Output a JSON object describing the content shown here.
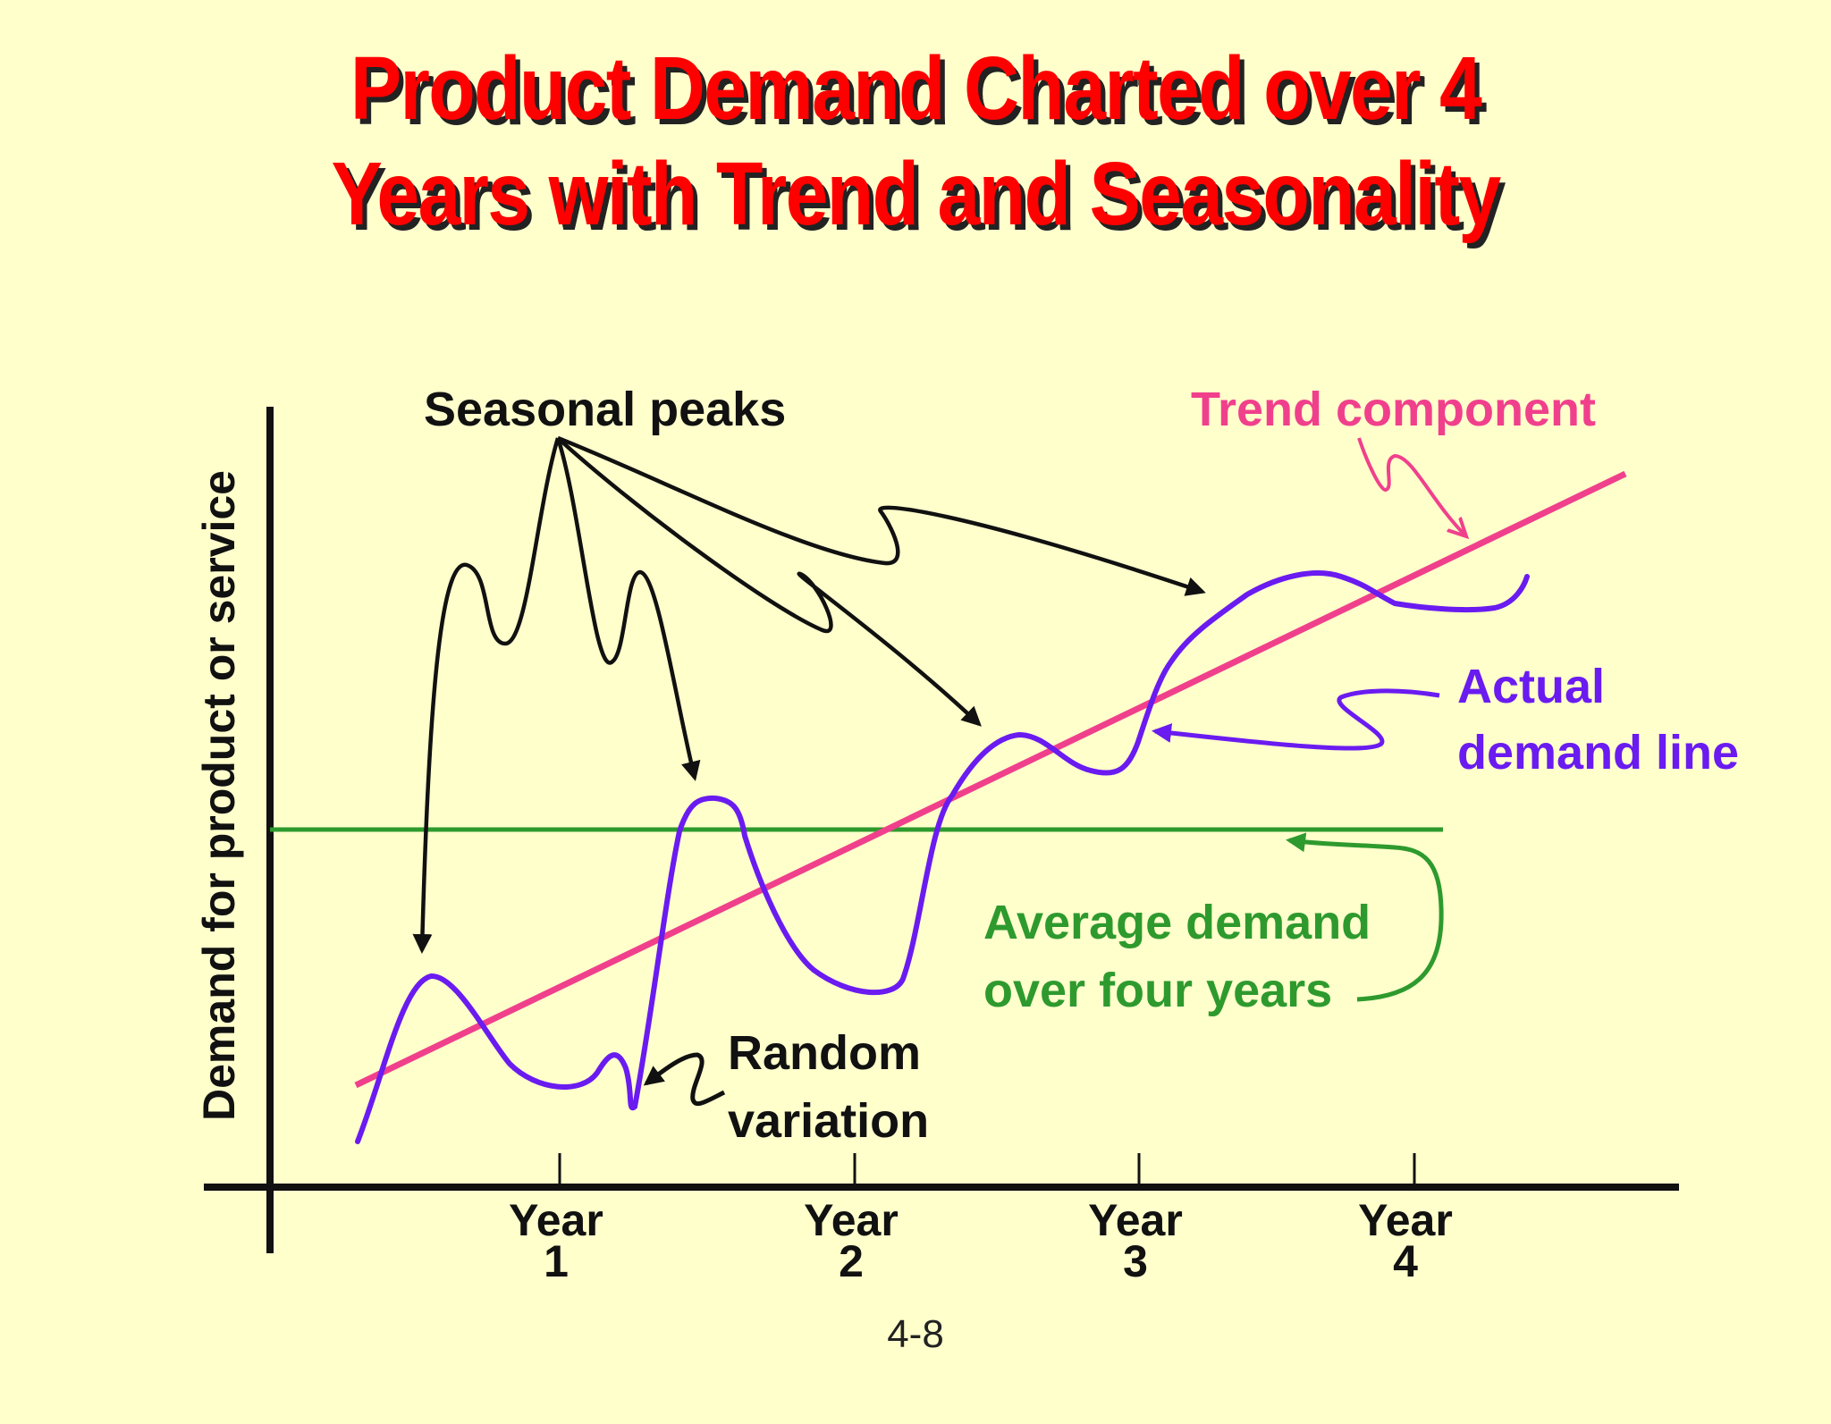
{
  "title": {
    "line1": "Product Demand Charted over 4",
    "line2": "Years with Trend and Seasonality"
  },
  "diagram": {
    "y_axis_label": "Demand for product or service",
    "annotations": {
      "seasonal_peaks": "Seasonal peaks",
      "trend_component": "Trend component",
      "actual_demand_line1": "Actual",
      "actual_demand_line2": "demand line",
      "average_demand_line1": "Average demand",
      "average_demand_line2": "over four years",
      "random_line1": "Random",
      "random_line2": "variation"
    },
    "x_ticks": [
      {
        "label1": "Year",
        "label2": "1"
      },
      {
        "label1": "Year",
        "label2": "2"
      },
      {
        "label1": "Year",
        "label2": "3"
      },
      {
        "label1": "Year",
        "label2": "4"
      }
    ],
    "colors": {
      "title": "#FF0000",
      "trend": "#F0408C",
      "actual": "#6A1BF0",
      "average": "#2E9A2E",
      "axes": "#111111",
      "background": "#FFFFCC"
    }
  },
  "page_number": "4-8"
}
